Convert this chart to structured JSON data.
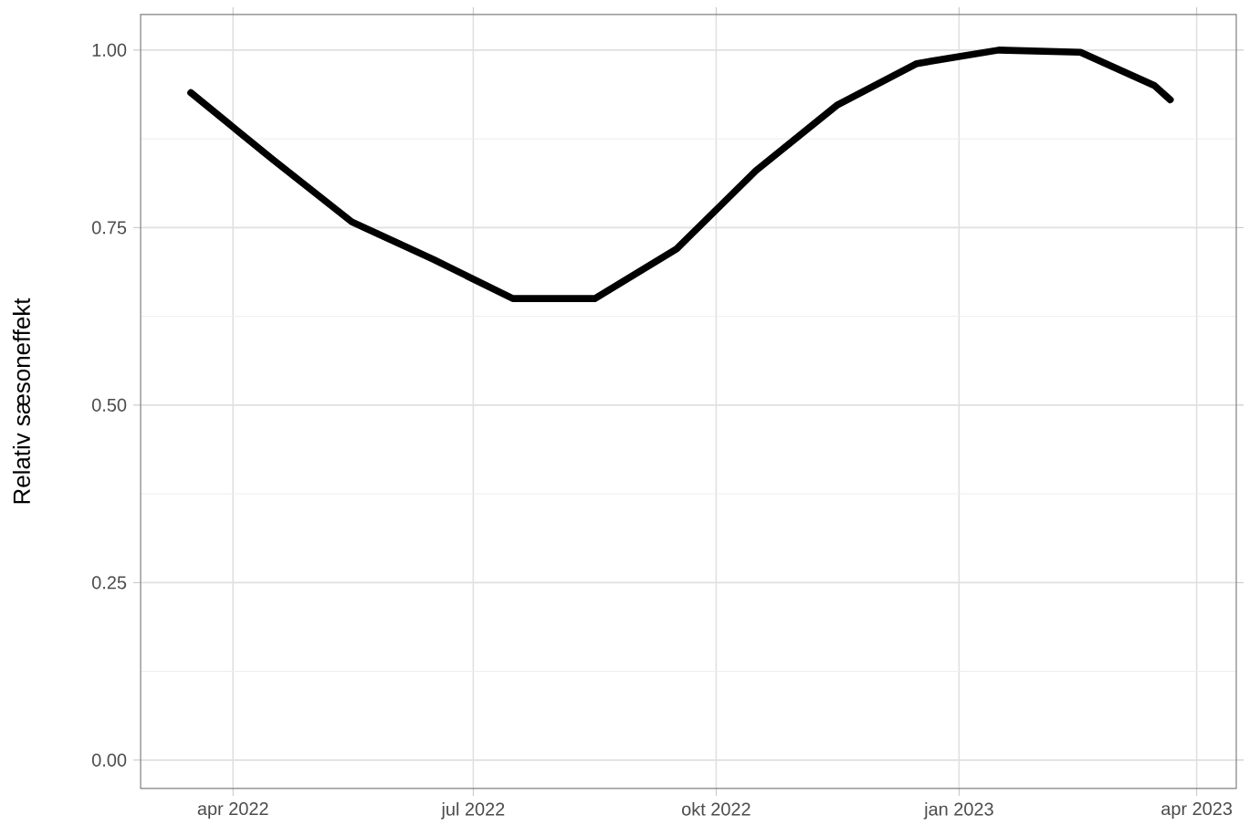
{
  "chart_data": {
    "type": "line",
    "ylabel": "Relativ sæsoneffekt",
    "x": [
      "2022-03-16",
      "2022-04-16",
      "2022-05-16",
      "2022-06-16",
      "2022-07-16",
      "2022-08-16",
      "2022-09-16",
      "2022-10-16",
      "2022-11-16",
      "2022-12-16",
      "2023-01-16",
      "2023-02-16",
      "2023-03-16",
      "2023-03-22"
    ],
    "series": [
      {
        "color": "#000000",
        "values": [
          0.94,
          0.846,
          0.758,
          0.705,
          0.65,
          0.65,
          0.72,
          0.83,
          0.923,
          0.981,
          1.0,
          0.997,
          0.95,
          0.93
        ]
      }
    ],
    "xlim": [
      "2022-02-25",
      "2023-04-16"
    ],
    "xticks": [
      {
        "value": "2022-04-01",
        "label": "apr 2022"
      },
      {
        "value": "2022-07-01",
        "label": "jul 2022"
      },
      {
        "value": "2022-10-01",
        "label": "okt 2022"
      },
      {
        "value": "2023-01-01",
        "label": "jan 2023"
      },
      {
        "value": "2023-04-01",
        "label": "apr 2023"
      }
    ],
    "ylim": [
      -0.04,
      1.05
    ],
    "yticks": [
      {
        "value": 0,
        "label": "0.00"
      },
      {
        "value": 0.25,
        "label": "0.25"
      },
      {
        "value": 0.5,
        "label": "0.50"
      },
      {
        "value": 0.75,
        "label": "0.75"
      },
      {
        "value": 1.0,
        "label": "1.00"
      }
    ],
    "grid": true,
    "marker": "none",
    "line_style": "solid"
  }
}
